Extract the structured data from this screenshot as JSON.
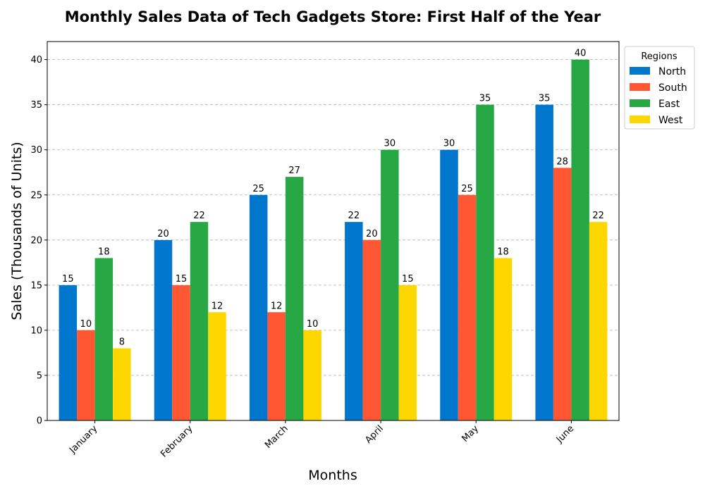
{
  "chart_data": {
    "type": "bar",
    "title": "Monthly Sales Data of Tech Gadgets Store: First Half of the Year",
    "xlabel": "Months",
    "ylabel": "Sales (Thousands of Units)",
    "categories": [
      "January",
      "February",
      "March",
      "April",
      "May",
      "June"
    ],
    "series": [
      {
        "name": "North",
        "color": "#0077CC",
        "values": [
          15,
          20,
          25,
          22,
          30,
          35
        ]
      },
      {
        "name": "South",
        "color": "#FF5733",
        "values": [
          10,
          15,
          12,
          20,
          25,
          28
        ]
      },
      {
        "name": "East",
        "color": "#28A745",
        "values": [
          18,
          22,
          27,
          30,
          35,
          40
        ]
      },
      {
        "name": "West",
        "color": "#FFD700",
        "values": [
          8,
          12,
          10,
          15,
          18,
          22
        ]
      }
    ],
    "ylim": [
      0,
      42
    ],
    "yticks": [
      0,
      5,
      10,
      15,
      20,
      25,
      30,
      35,
      40
    ],
    "grid": "y-dashed",
    "legend": {
      "title": "Regions",
      "placement": "outside-upper-right"
    }
  }
}
